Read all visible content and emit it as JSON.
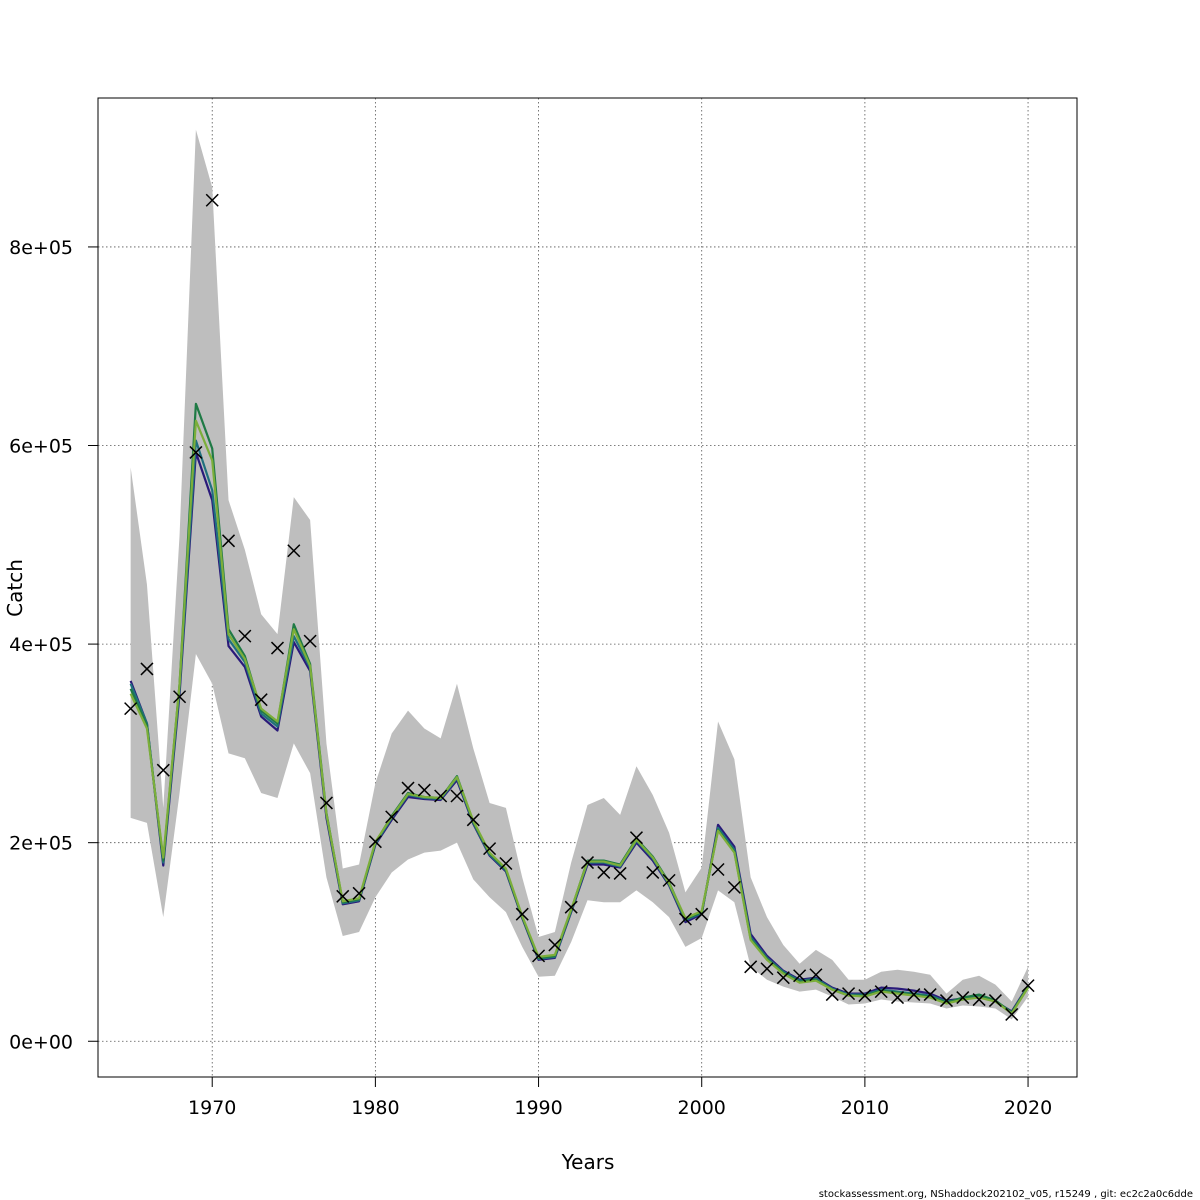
{
  "chart_data": {
    "type": "line",
    "title": "",
    "xlabel": "Years",
    "ylabel": "Catch",
    "xlim": [
      1963,
      2023
    ],
    "ylim": [
      -36000,
      950000
    ],
    "xticks": [
      1970,
      1980,
      1990,
      2000,
      2010,
      2020
    ],
    "yticks": [
      0,
      200000,
      400000,
      600000,
      800000
    ],
    "ytick_labels": [
      "0e+00",
      "2e+05",
      "4e+05",
      "6e+05",
      "8e+05"
    ],
    "grid": true,
    "years": [
      1965,
      1966,
      1967,
      1968,
      1969,
      1970,
      1971,
      1972,
      1973,
      1974,
      1975,
      1976,
      1977,
      1978,
      1979,
      1980,
      1981,
      1982,
      1983,
      1984,
      1985,
      1986,
      1987,
      1988,
      1989,
      1990,
      1991,
      1992,
      1993,
      1994,
      1995,
      1996,
      1997,
      1998,
      1999,
      2000,
      2001,
      2002,
      2003,
      2004,
      2005,
      2006,
      2007,
      2008,
      2009,
      2010,
      2011,
      2012,
      2013,
      2014,
      2015,
      2016,
      2017,
      2018,
      2019,
      2020
    ],
    "confidence_band": {
      "lower": [
        225000,
        220000,
        125000,
        250000,
        390000,
        360000,
        290000,
        285000,
        250000,
        245000,
        300000,
        270000,
        165000,
        106000,
        110000,
        145000,
        170000,
        183000,
        190000,
        192000,
        200000,
        163000,
        145000,
        130000,
        95000,
        65000,
        66000,
        100000,
        142000,
        140000,
        140000,
        152000,
        140000,
        125000,
        95000,
        104000,
        152000,
        140000,
        75000,
        62000,
        55000,
        50000,
        52000,
        45000,
        37000,
        38000,
        42000,
        40000,
        39000,
        38000,
        33000,
        36000,
        35000,
        33000,
        22000,
        45000
      ],
      "upper": [
        578000,
        460000,
        235000,
        510000,
        918000,
        860000,
        545000,
        495000,
        430000,
        410000,
        548000,
        525000,
        300000,
        174000,
        178000,
        260000,
        310000,
        333000,
        315000,
        305000,
        360000,
        295000,
        240000,
        235000,
        165000,
        105000,
        110000,
        180000,
        238000,
        245000,
        228000,
        277000,
        248000,
        210000,
        150000,
        175000,
        322000,
        284000,
        165000,
        125000,
        97000,
        78000,
        92000,
        82000,
        62000,
        62000,
        70000,
        72000,
        70000,
        67000,
        48000,
        62000,
        66000,
        57000,
        40000,
        75000
      ]
    },
    "series": [
      {
        "name": "",
        "color": "#2a1a7a",
        "values": [
          363000,
          320000,
          177000,
          350000,
          593000,
          545000,
          398000,
          377000,
          327000,
          313000,
          402000,
          373000,
          225000,
          138000,
          141000,
          198000,
          223000,
          246000,
          244000,
          243000,
          263000,
          219000,
          187000,
          171000,
          124000,
          82000,
          84000,
          130000,
          178000,
          178000,
          175000,
          200000,
          182000,
          157000,
          120000,
          128000,
          218000,
          196000,
          108000,
          86000,
          71000,
          62000,
          64000,
          54000,
          48000,
          48000,
          54000,
          53000,
          51000,
          48000,
          41000,
          43000,
          45000,
          40000,
          30000,
          56000
        ]
      },
      {
        "name": "",
        "color": "#20707e",
        "values": [
          360000,
          320000,
          180000,
          355000,
          605000,
          555000,
          405000,
          382000,
          330000,
          317000,
          408000,
          376000,
          228000,
          139000,
          142000,
          199000,
          225000,
          248000,
          245000,
          244000,
          265000,
          220000,
          188000,
          172000,
          125000,
          83000,
          85000,
          131000,
          180000,
          180000,
          176000,
          202000,
          184000,
          158000,
          122000,
          129000,
          215000,
          193000,
          105000,
          84000,
          70000,
          61000,
          63000,
          53000,
          47000,
          47000,
          52000,
          50000,
          48000,
          46000,
          40000,
          42000,
          46000,
          40000,
          29000,
          55000
        ]
      },
      {
        "name": "",
        "color": "#1f7a45",
        "values": [
          355000,
          318000,
          182000,
          360000,
          642000,
          597000,
          415000,
          388000,
          333000,
          320000,
          420000,
          380000,
          230000,
          140000,
          143000,
          200000,
          227000,
          250000,
          246000,
          245000,
          267000,
          221000,
          189000,
          173000,
          125000,
          84000,
          86000,
          132000,
          182000,
          182000,
          178000,
          204000,
          186000,
          160000,
          123000,
          130000,
          213000,
          191000,
          103000,
          83000,
          69000,
          60000,
          62000,
          52000,
          46000,
          46000,
          51000,
          49000,
          47000,
          45000,
          39000,
          44000,
          47000,
          41000,
          29000,
          55000
        ]
      },
      {
        "name": "",
        "color": "#7cae3a",
        "values": [
          350000,
          315000,
          185000,
          360000,
          625000,
          585000,
          410000,
          385000,
          335000,
          322000,
          415000,
          378000,
          229000,
          141000,
          144000,
          201000,
          226000,
          249000,
          246000,
          245000,
          266000,
          222000,
          190000,
          174000,
          126000,
          85000,
          87000,
          133000,
          181000,
          181000,
          177000,
          203000,
          185000,
          159000,
          124000,
          131000,
          212000,
          190000,
          102000,
          82000,
          68000,
          59000,
          61000,
          52000,
          46000,
          45000,
          50000,
          48000,
          46000,
          44000,
          38000,
          42000,
          44000,
          40000,
          28000,
          54000
        ]
      }
    ],
    "observed": [
      335000,
      375000,
      273000,
      347000,
      593000,
      847000,
      504000,
      408000,
      344000,
      396000,
      494000,
      403000,
      240000,
      146000,
      149000,
      201000,
      226000,
      255000,
      253000,
      247000,
      247000,
      223000,
      194000,
      179000,
      128000,
      86000,
      97000,
      135000,
      180000,
      170000,
      169000,
      205000,
      170000,
      162000,
      123000,
      128000,
      173000,
      155000,
      75000,
      73000,
      64000,
      66000,
      67000,
      47000,
      48000,
      46000,
      50000,
      44000,
      47000,
      47000,
      41000,
      44000,
      42000,
      41000,
      27000,
      56000
    ]
  },
  "footer": "stockassessment.org, NShaddock202102_v05, r15249 , git: ec2c2a0c6dde"
}
